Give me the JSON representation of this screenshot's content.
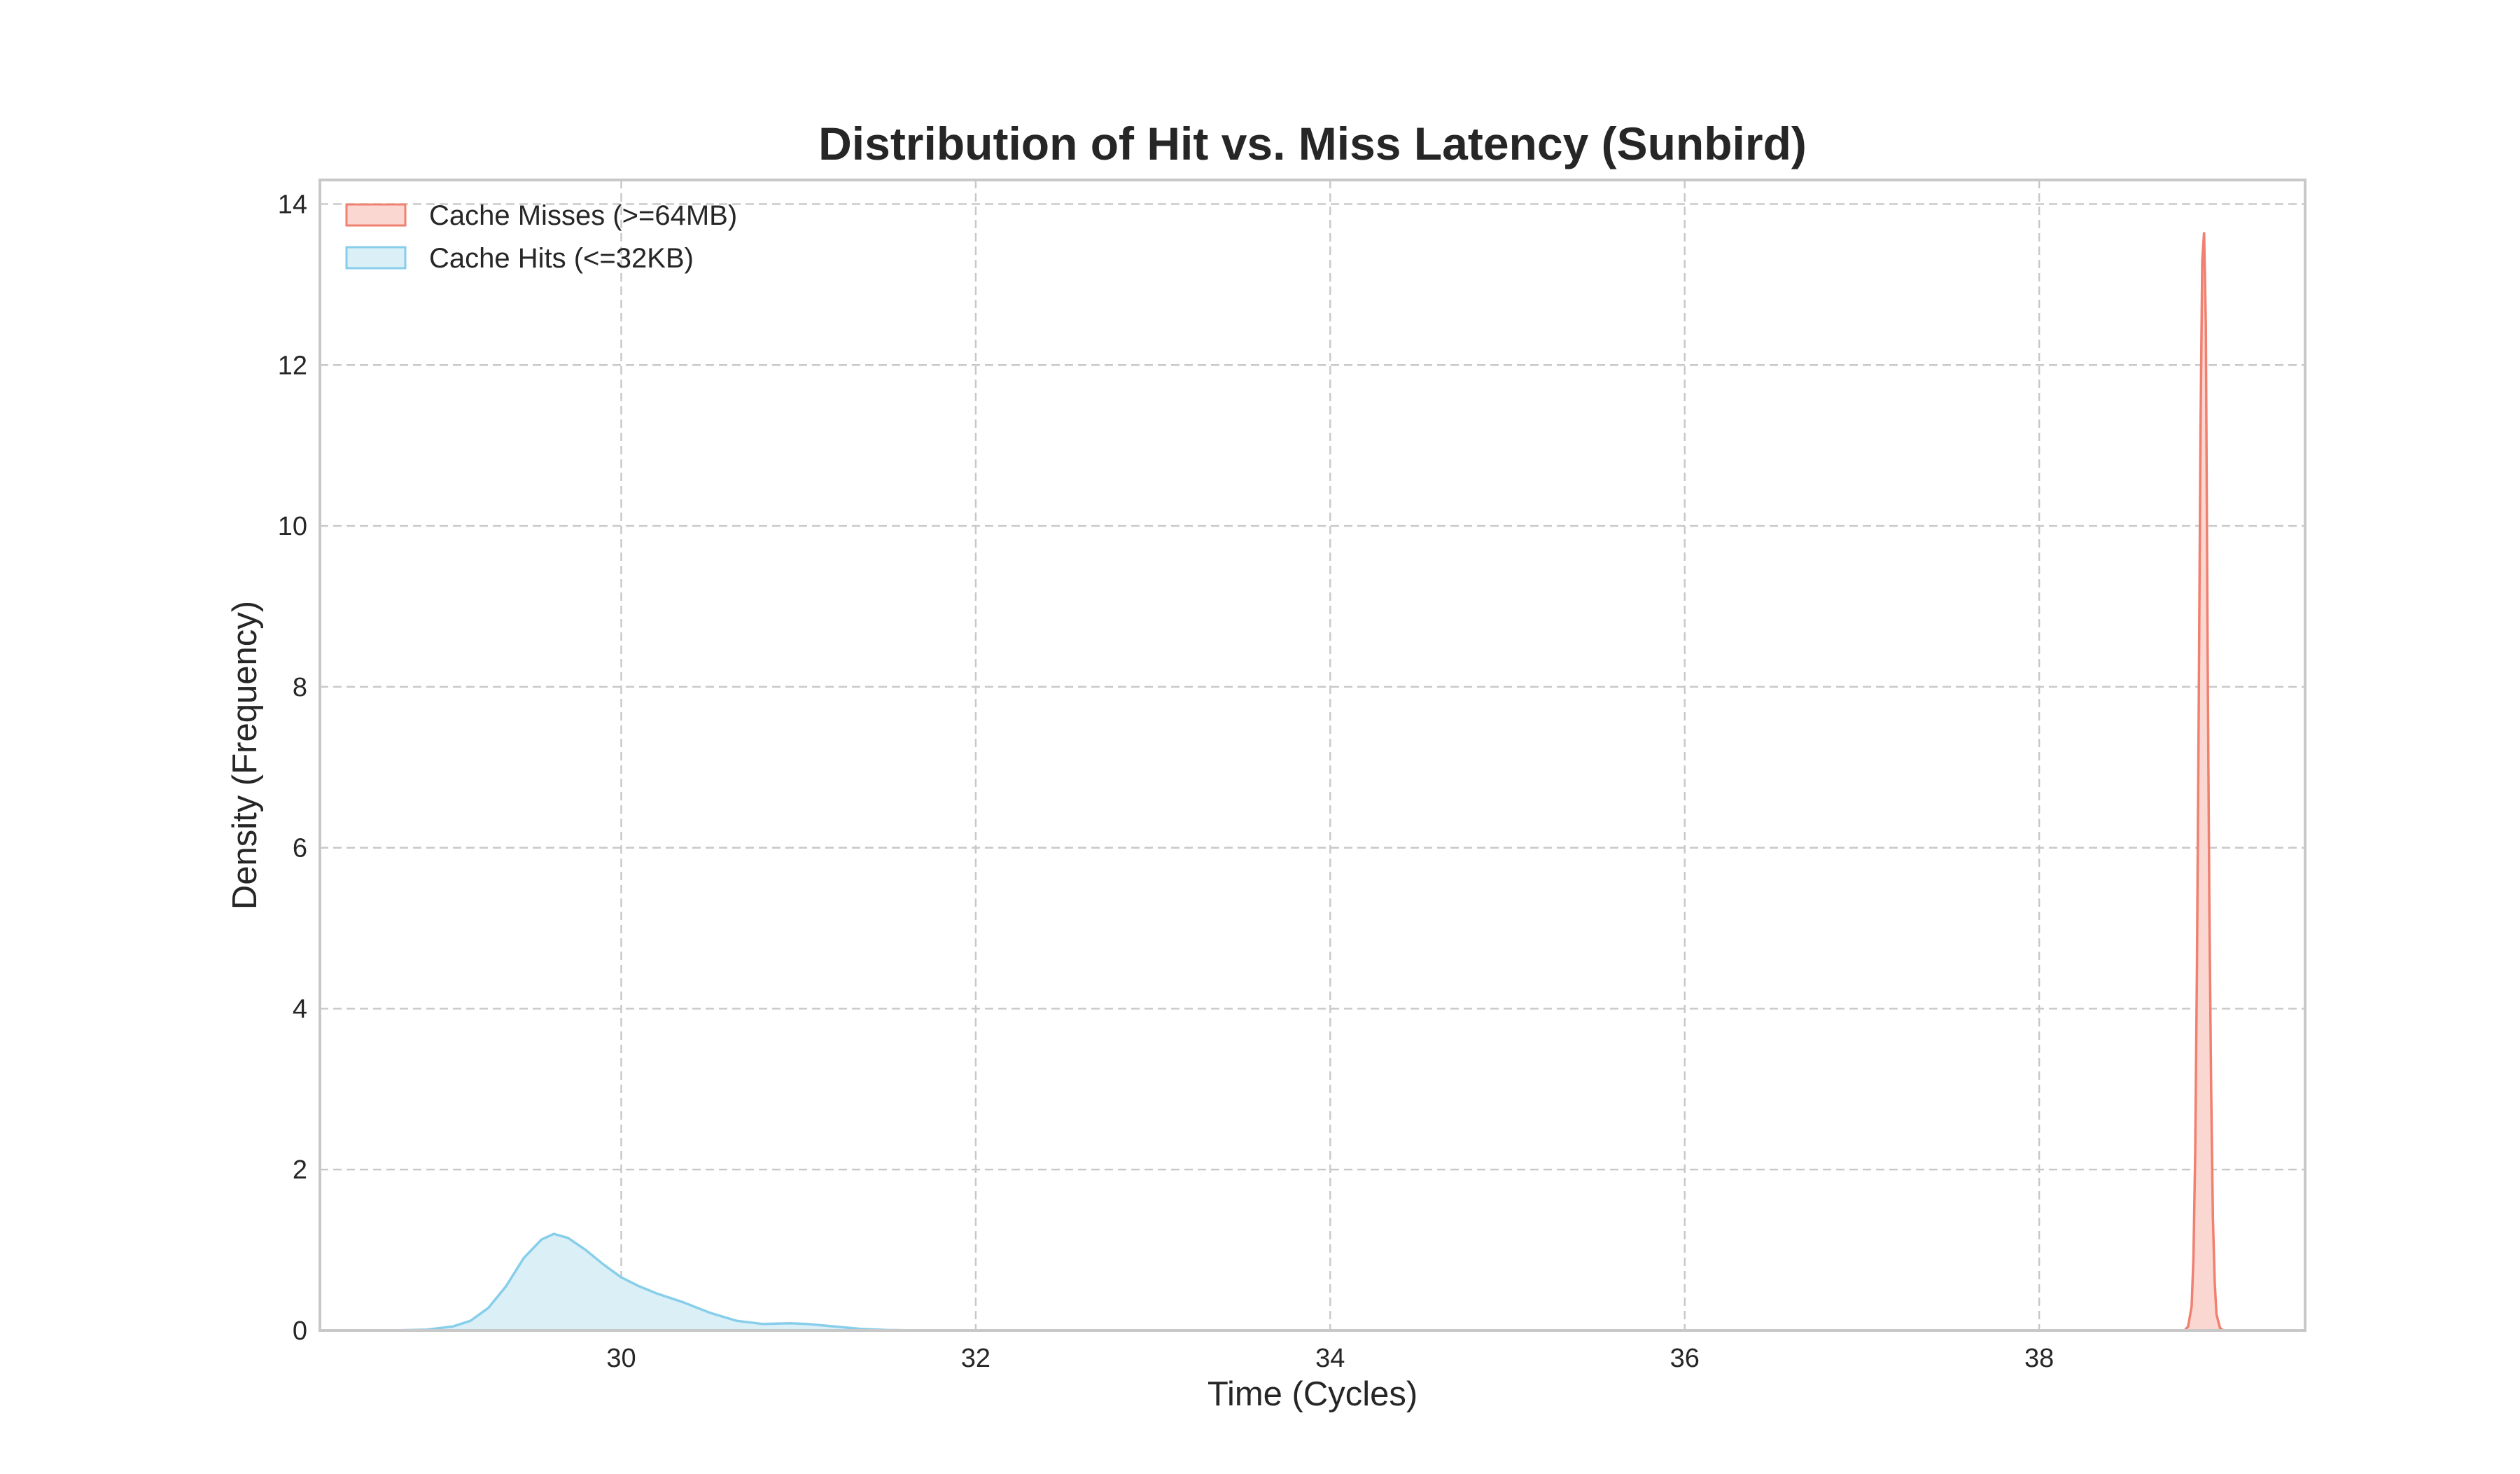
{
  "chart_data": {
    "type": "area",
    "title": "Distribution of Hit vs. Miss Latency (Sunbird)",
    "xlabel": "Time (Cycles)",
    "ylabel": "Density (Frequency)",
    "xlim": [
      28.3,
      39.5
    ],
    "ylim": [
      0,
      14.3
    ],
    "x_ticks": [
      30,
      32,
      34,
      36,
      38
    ],
    "y_ticks": [
      0,
      2,
      4,
      6,
      8,
      10,
      12,
      14
    ],
    "grid": true,
    "legend_position": "top-left",
    "series": [
      {
        "name": "Cache Misses (>=64MB)",
        "line_color": "#f08070",
        "fill_color": "#fbd7d1",
        "x": [
          38.82,
          38.84,
          38.86,
          38.87,
          38.88,
          38.89,
          38.9,
          38.91,
          38.92,
          38.93,
          38.94,
          38.95,
          38.96,
          38.97,
          38.98,
          38.99,
          39.0,
          39.02,
          39.04
        ],
        "y": [
          0.0,
          0.05,
          0.3,
          0.9,
          2.2,
          4.5,
          7.8,
          11.2,
          13.3,
          13.65,
          12.5,
          8.5,
          5.2,
          3.0,
          1.4,
          0.6,
          0.2,
          0.03,
          0.0
        ]
      },
      {
        "name": "Cache Hits (<=32KB)",
        "line_color": "#87ceeb",
        "fill_color": "#dbeff7",
        "x": [
          28.7,
          28.9,
          29.05,
          29.15,
          29.25,
          29.35,
          29.45,
          29.55,
          29.62,
          29.7,
          29.8,
          29.9,
          30.0,
          30.1,
          30.2,
          30.35,
          30.5,
          30.65,
          30.8,
          30.95,
          31.05,
          31.2,
          31.35,
          31.5,
          31.7
        ],
        "y": [
          0.0,
          0.01,
          0.05,
          0.12,
          0.28,
          0.55,
          0.9,
          1.13,
          1.2,
          1.15,
          1.0,
          0.82,
          0.66,
          0.55,
          0.46,
          0.35,
          0.22,
          0.12,
          0.08,
          0.09,
          0.08,
          0.05,
          0.02,
          0.005,
          0.0
        ]
      }
    ]
  }
}
